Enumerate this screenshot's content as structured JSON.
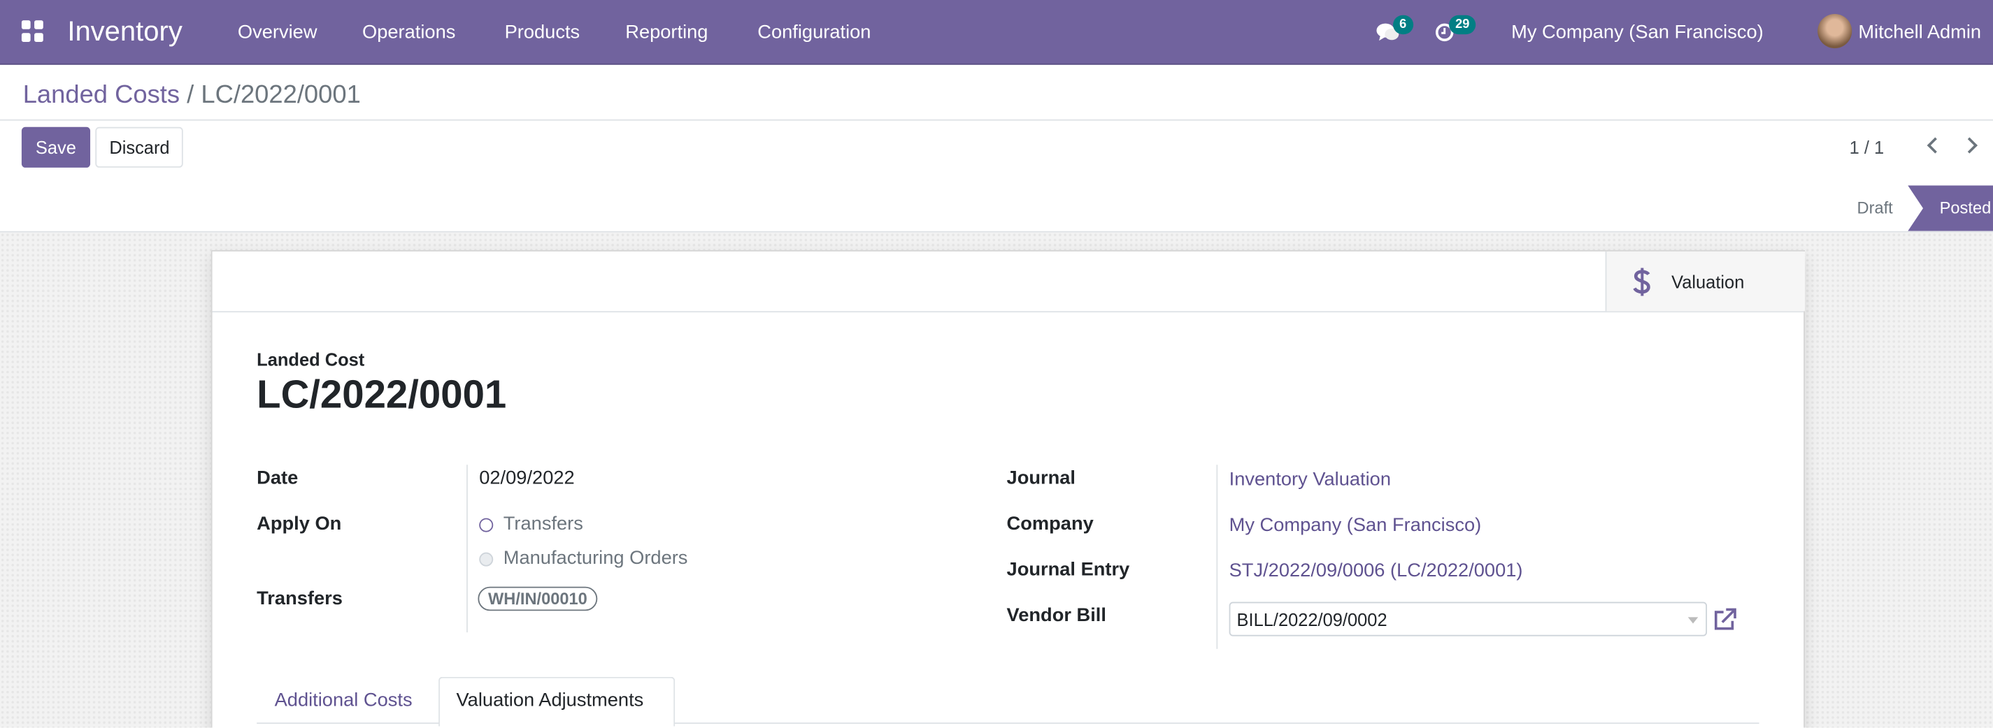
{
  "navbar": {
    "app_name": "Inventory",
    "menu": [
      "Overview",
      "Operations",
      "Products",
      "Reporting",
      "Configuration"
    ],
    "messages_count": "6",
    "activities_count": "29",
    "company": "My Company (San Francisco)",
    "user": "Mitchell Admin",
    "color": "#71639e",
    "badge_color": "#017e84"
  },
  "breadcrumb": {
    "parent": "Landed Costs",
    "separator": "/",
    "current": "LC/2022/0001"
  },
  "toolbar": {
    "save": "Save",
    "discard": "Discard",
    "pager": "1 / 1"
  },
  "statusbar": {
    "draft": "Draft",
    "posted": "Posted",
    "active": "Posted"
  },
  "button_box": {
    "valuation": "Valuation"
  },
  "form": {
    "title_label": "Landed Cost",
    "title": "LC/2022/0001",
    "date_label": "Date",
    "date": "02/09/2022",
    "apply_on_label": "Apply On",
    "apply_on_options": [
      "Transfers",
      "Manufacturing Orders"
    ],
    "apply_on_selected": "Transfers",
    "transfers_label": "Transfers",
    "transfers_tags": [
      "WH/IN/00010"
    ],
    "journal_label": "Journal",
    "journal": "Inventory Valuation",
    "company_label": "Company",
    "company": "My Company (San Francisco)",
    "journal_entry_label": "Journal Entry",
    "journal_entry": "STJ/2022/09/0006 (LC/2022/0001)",
    "vendor_bill_label": "Vendor Bill",
    "vendor_bill": "BILL/2022/09/0002"
  },
  "tabs": [
    {
      "label": "Additional Costs",
      "active": false
    },
    {
      "label": "Valuation Adjustments",
      "active": true
    }
  ]
}
